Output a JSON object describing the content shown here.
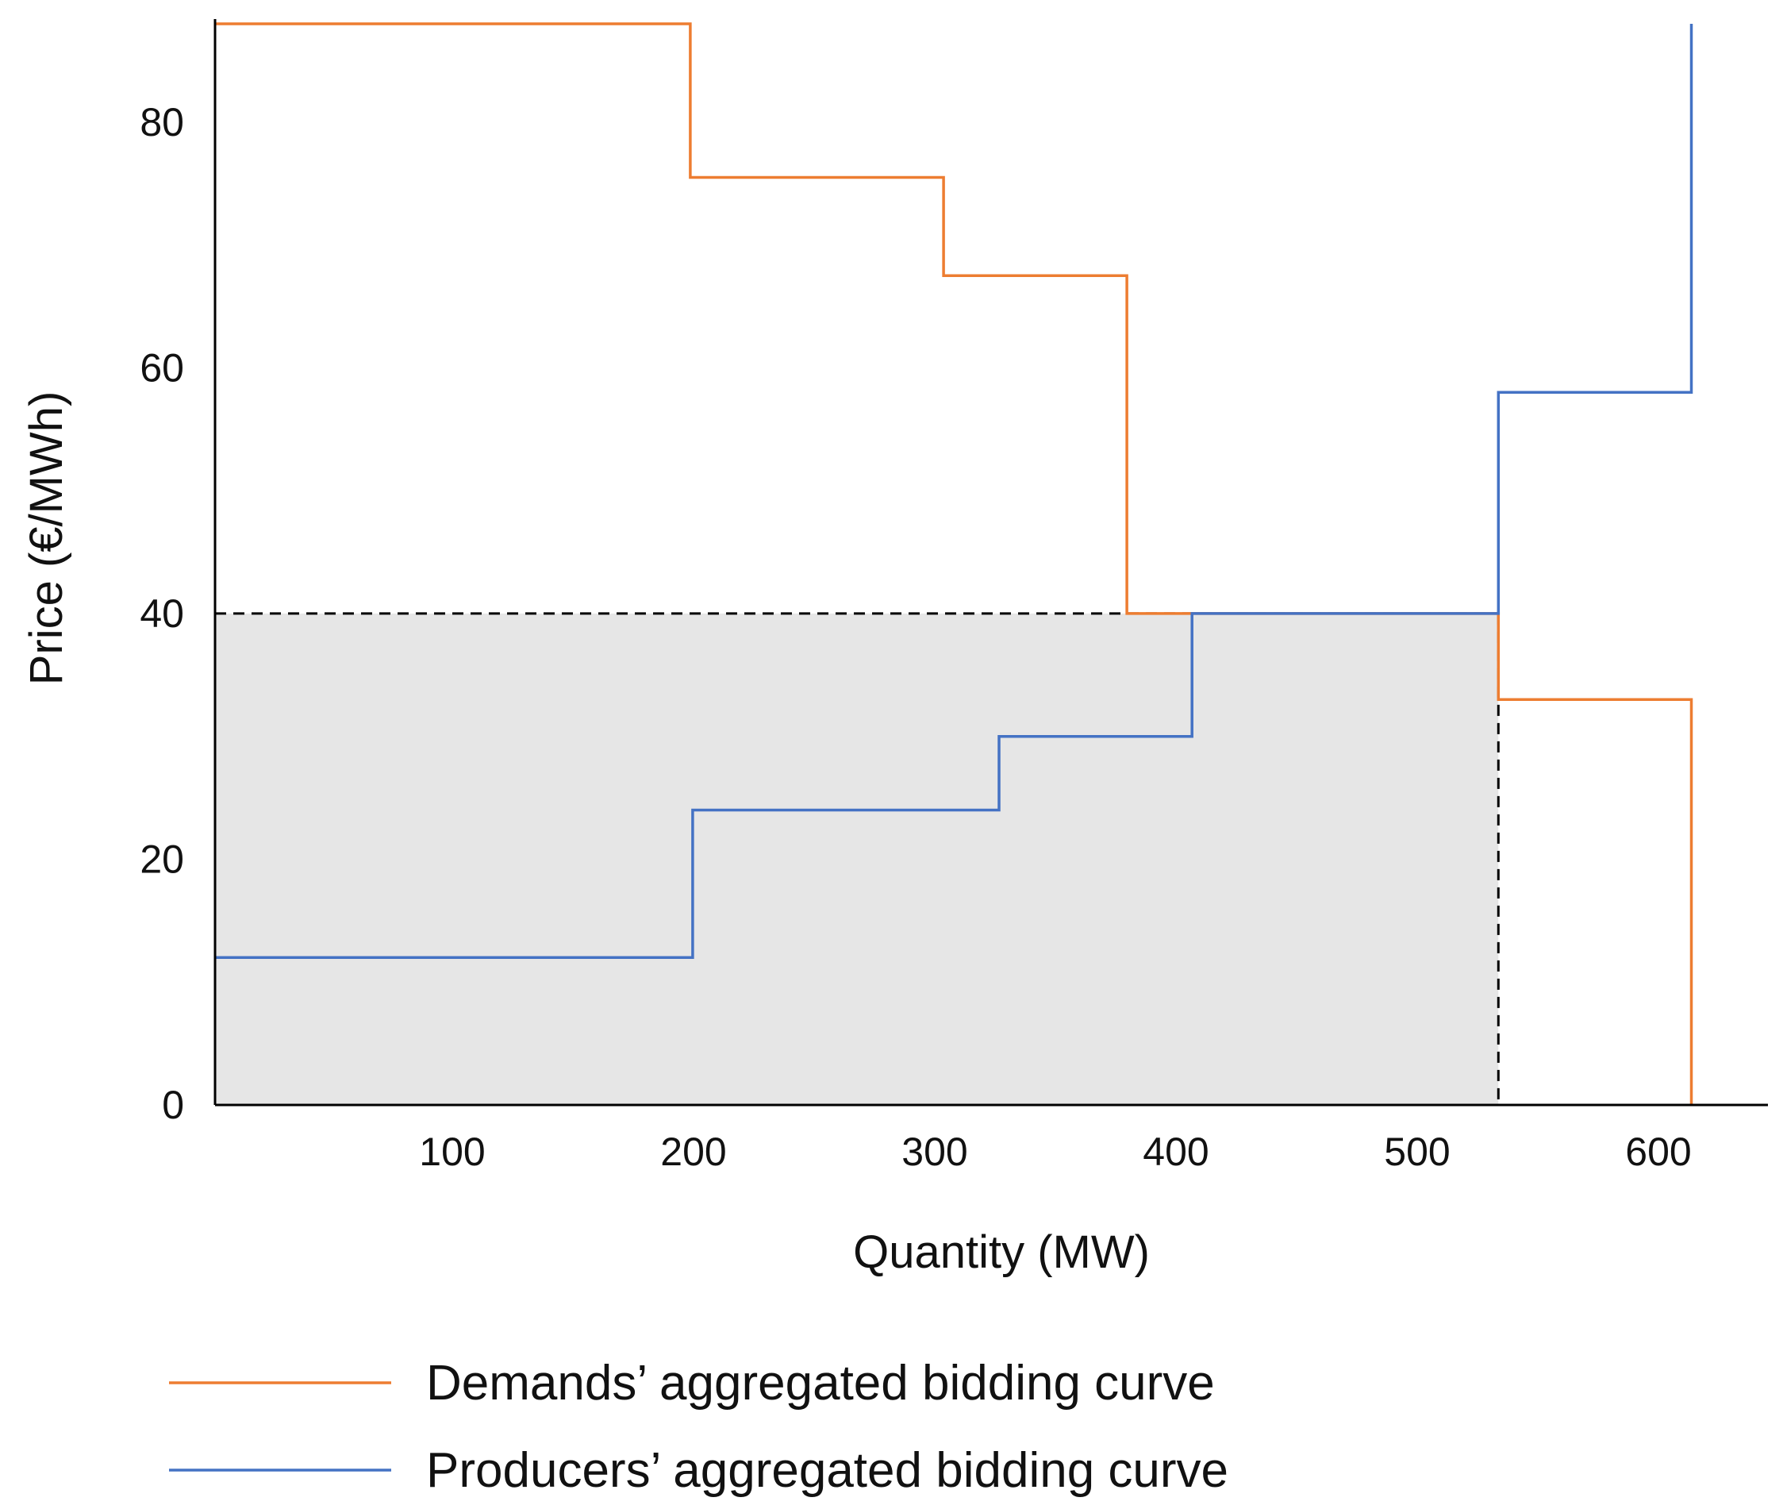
{
  "chart_data": {
    "type": "line",
    "step": true,
    "xlabel": "Quantity (MW)",
    "ylabel": "Price (€/MWh)",
    "xlim": [
      0,
      635
    ],
    "ylim": [
      0,
      88
    ],
    "x_ticks": [
      100,
      200,
      300,
      400,
      500,
      600
    ],
    "y_ticks": [
      0,
      20,
      40,
      60,
      80
    ],
    "grid": false,
    "legend_position": "bottom",
    "series": [
      {
        "name": "Demands’ aggregated bidding curve",
        "color": "#ED7D31",
        "points": [
          [
            0,
            88
          ],
          [
            197,
            88
          ],
          [
            197,
            75.5
          ],
          [
            302,
            75.5
          ],
          [
            302,
            67.5
          ],
          [
            378,
            67.5
          ],
          [
            378,
            40
          ],
          [
            532,
            40
          ],
          [
            532,
            33
          ],
          [
            612,
            33
          ],
          [
            612,
            0
          ]
        ]
      },
      {
        "name": "Producers’ aggregated bidding curve",
        "color": "#4472C4",
        "points": [
          [
            0,
            12
          ],
          [
            198,
            12
          ],
          [
            198,
            24
          ],
          [
            325,
            24
          ],
          [
            325,
            30
          ],
          [
            405,
            30
          ],
          [
            405,
            40
          ],
          [
            532,
            40
          ],
          [
            532,
            58
          ],
          [
            612,
            58
          ],
          [
            612,
            88
          ]
        ]
      }
    ],
    "equilibrium": {
      "quantity": 532,
      "price": 40
    },
    "shaded_region": {
      "x": [
        0,
        532
      ],
      "y": [
        0,
        40
      ],
      "color": "#E6E6E6"
    }
  }
}
